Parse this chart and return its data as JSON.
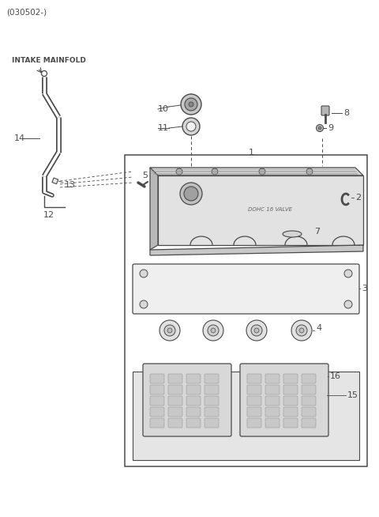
{
  "bg_color": "#ffffff",
  "line_color": "#4a4a4a",
  "fig_width": 4.8,
  "fig_height": 6.54,
  "dpi": 100,
  "header": "(030502-)",
  "intake_label": "INTAKE MAINFOLD"
}
